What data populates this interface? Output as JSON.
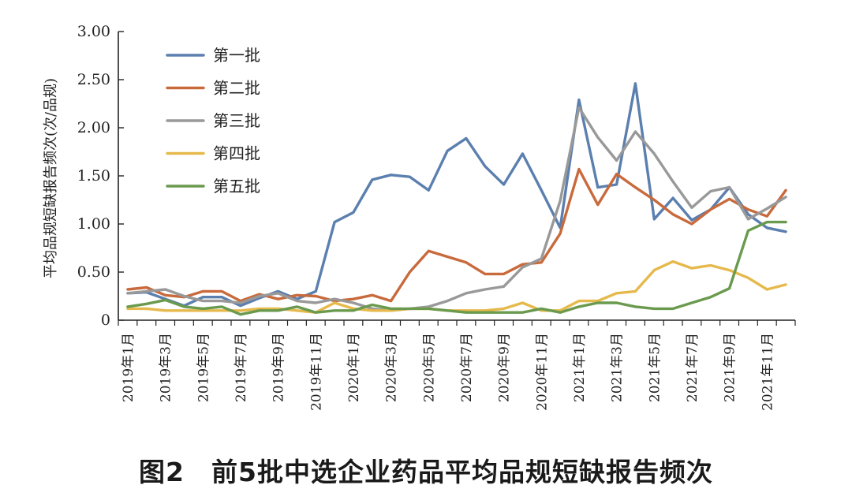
{
  "caption": "图2　前5批中选企业药品平均品规短缺报告频次",
  "chart_data": {
    "type": "line",
    "title": "图2　前5批中选企业药品平均品规短缺报告频次",
    "xlabel": "",
    "ylabel": "平均品规短缺报告频次(次/品规)",
    "ylim": [
      0,
      3.0
    ],
    "yticks": [
      "0",
      "0.50",
      "1.00",
      "1.50",
      "2.00",
      "2.50",
      "3.00"
    ],
    "ytick_values": [
      0,
      0.5,
      1.0,
      1.5,
      2.0,
      2.5,
      3.0
    ],
    "categories": [
      "2019年1月",
      "2019年2月",
      "2019年3月",
      "2019年4月",
      "2019年5月",
      "2019年6月",
      "2019年7月",
      "2019年8月",
      "2019年9月",
      "2019年10月",
      "2019年11月",
      "2019年12月",
      "2020年1月",
      "2020年2月",
      "2020年3月",
      "2020年4月",
      "2020年5月",
      "2020年6月",
      "2020年7月",
      "2020年8月",
      "2020年9月",
      "2020年10月",
      "2020年11月",
      "2020年12月",
      "2021年1月",
      "2021年2月",
      "2021年3月",
      "2021年4月",
      "2021年5月",
      "2021年6月",
      "2021年7月",
      "2021年8月",
      "2021年9月",
      "2021年10月",
      "2021年11月",
      "2021年12月"
    ],
    "xtick_labels": [
      "2019年1月",
      "2019年3月",
      "2019年5月",
      "2019年7月",
      "2019年9月",
      "2019年11月",
      "2020年1月",
      "2020年3月",
      "2020年5月",
      "2020年7月",
      "2020年9月",
      "2020年11月",
      "2021年1月",
      "2021年3月",
      "2021年5月",
      "2021年7月",
      "2021年9月",
      "2021年11月"
    ],
    "legend_position": "top-left",
    "grid": false,
    "series": [
      {
        "name": "第一批",
        "color": "#5b7fae",
        "values": [
          0.28,
          0.29,
          0.22,
          0.15,
          0.24,
          0.24,
          0.15,
          0.23,
          0.3,
          0.22,
          0.3,
          1.02,
          1.12,
          1.46,
          1.51,
          1.49,
          1.35,
          1.76,
          1.89,
          1.6,
          1.41,
          1.73,
          1.35,
          0.96,
          2.29,
          1.38,
          1.41,
          2.46,
          1.05,
          1.27,
          1.04,
          1.15,
          1.38,
          1.1,
          0.96,
          0.92
        ]
      },
      {
        "name": "第二批",
        "color": "#c86a3c",
        "values": [
          0.32,
          0.34,
          0.26,
          0.24,
          0.3,
          0.3,
          0.2,
          0.27,
          0.22,
          0.26,
          0.25,
          0.2,
          0.22,
          0.26,
          0.2,
          0.5,
          0.72,
          0.66,
          0.6,
          0.48,
          0.48,
          0.58,
          0.6,
          0.9,
          1.57,
          1.2,
          1.52,
          1.38,
          1.25,
          1.1,
          1.0,
          1.15,
          1.26,
          1.15,
          1.08,
          1.35
        ]
      },
      {
        "name": "第三批",
        "color": "#999999",
        "values": [
          0.28,
          0.3,
          0.32,
          0.25,
          0.2,
          0.2,
          0.18,
          0.25,
          0.28,
          0.2,
          0.18,
          0.22,
          0.18,
          0.12,
          0.1,
          0.12,
          0.14,
          0.2,
          0.28,
          0.32,
          0.35,
          0.55,
          0.64,
          1.24,
          2.21,
          1.9,
          1.66,
          1.96,
          1.73,
          1.44,
          1.17,
          1.34,
          1.38,
          1.05,
          1.16,
          1.28
        ]
      },
      {
        "name": "第四批",
        "color": "#e6b94c",
        "values": [
          0.12,
          0.12,
          0.1,
          0.1,
          0.1,
          0.1,
          0.1,
          0.12,
          0.12,
          0.1,
          0.08,
          0.18,
          0.12,
          0.1,
          0.1,
          0.12,
          0.12,
          0.1,
          0.1,
          0.1,
          0.12,
          0.18,
          0.1,
          0.1,
          0.2,
          0.2,
          0.28,
          0.3,
          0.52,
          0.61,
          0.54,
          0.57,
          0.52,
          0.44,
          0.32,
          0.37
        ]
      },
      {
        "name": "第五批",
        "color": "#6a9a4e",
        "values": [
          0.14,
          0.17,
          0.21,
          0.14,
          0.12,
          0.14,
          0.06,
          0.1,
          0.1,
          0.14,
          0.08,
          0.1,
          0.1,
          0.16,
          0.12,
          0.12,
          0.12,
          0.1,
          0.08,
          0.08,
          0.08,
          0.08,
          0.12,
          0.08,
          0.14,
          0.18,
          0.18,
          0.14,
          0.12,
          0.12,
          0.18,
          0.24,
          0.33,
          0.93,
          1.02,
          1.02
        ]
      }
    ]
  }
}
